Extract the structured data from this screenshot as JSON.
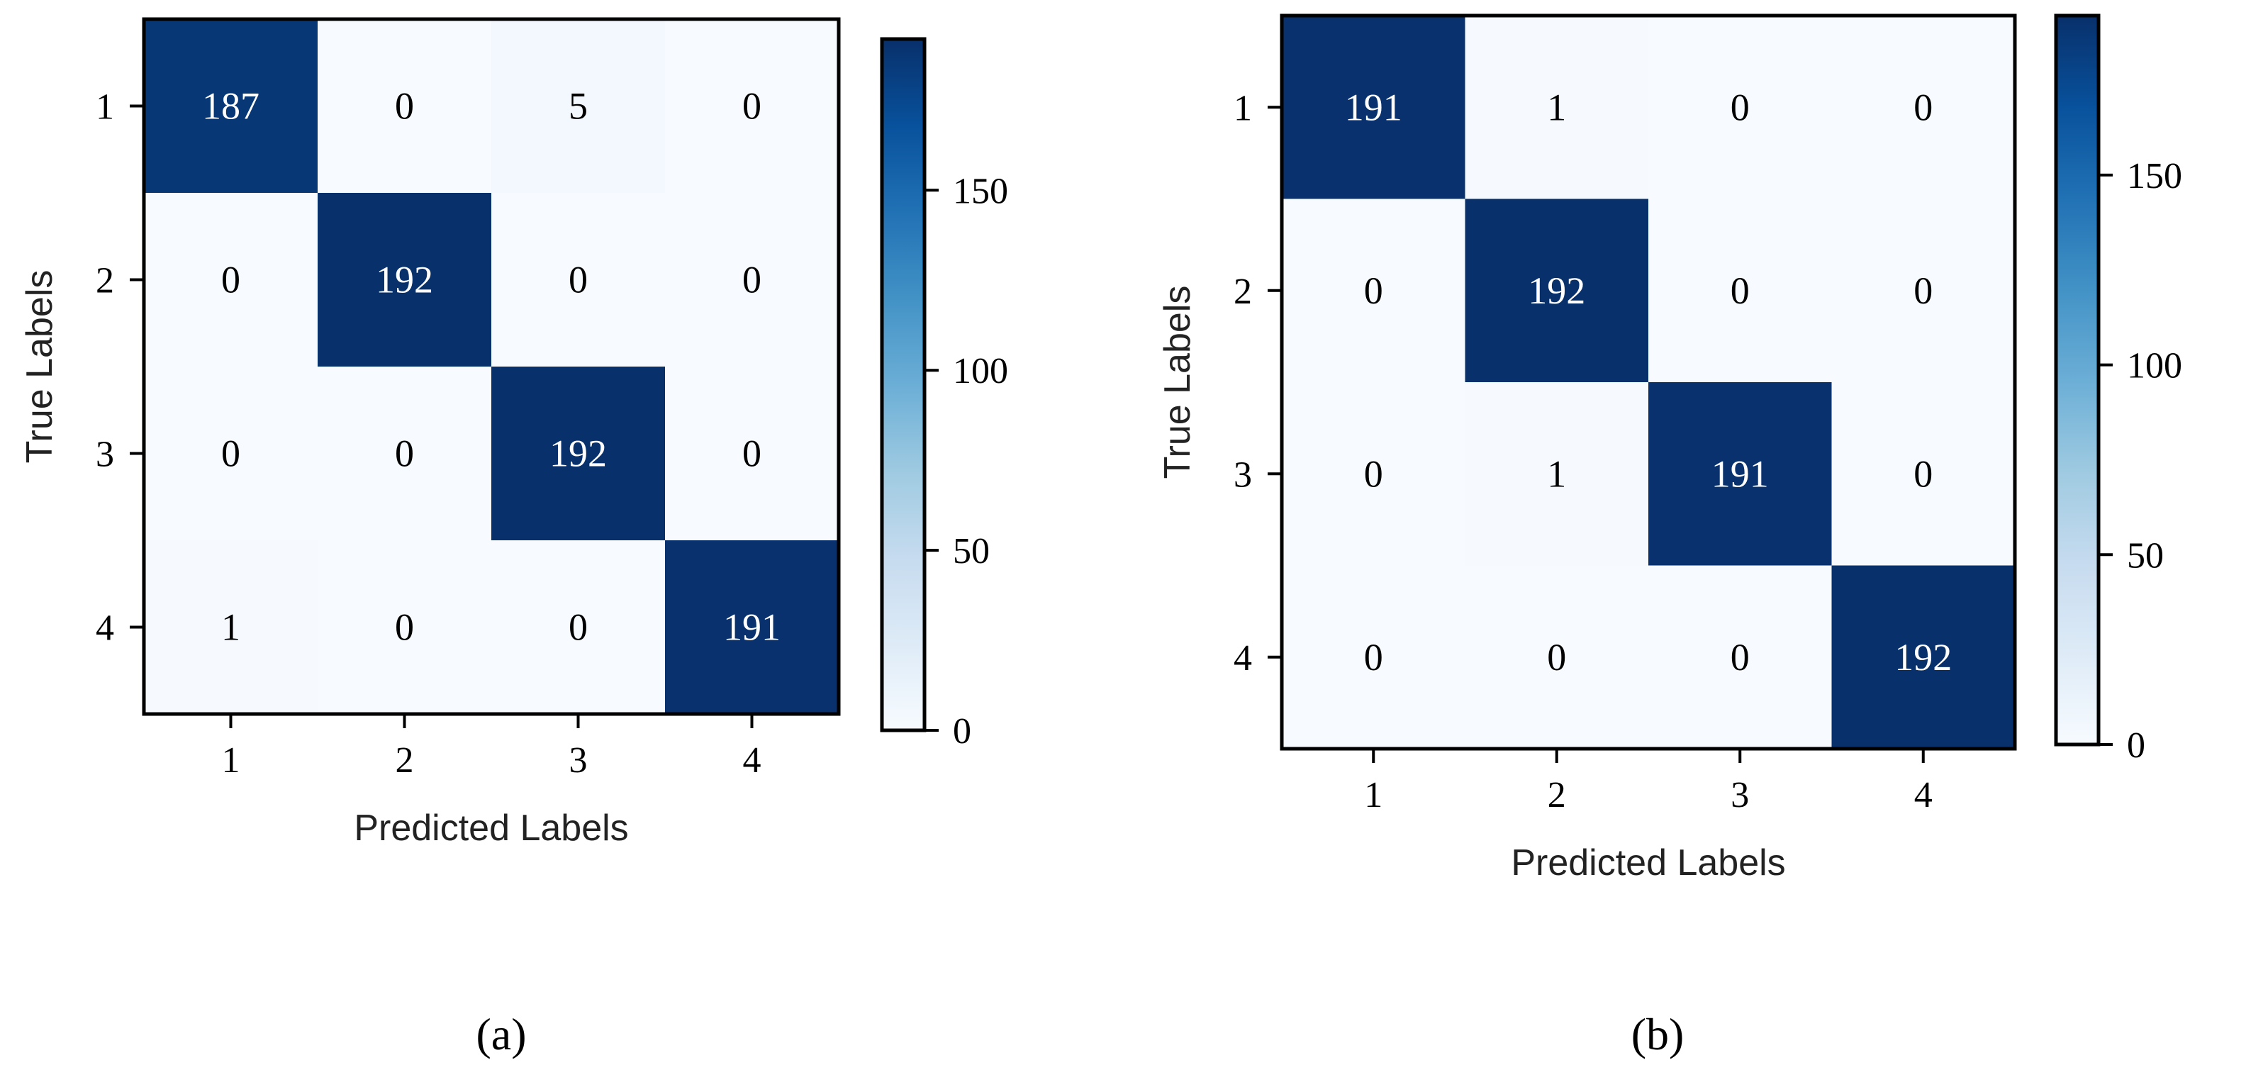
{
  "chart_data": [
    {
      "type": "heatmap",
      "panel_label": "(a)",
      "xlabel": "Predicted Labels",
      "ylabel": "True Labels",
      "x_categories": [
        "1",
        "2",
        "3",
        "4"
      ],
      "y_categories": [
        "1",
        "2",
        "3",
        "4"
      ],
      "values": [
        [
          187,
          0,
          5,
          0
        ],
        [
          0,
          192,
          0,
          0
        ],
        [
          0,
          0,
          192,
          0
        ],
        [
          1,
          0,
          0,
          191
        ]
      ],
      "colorbar": {
        "min": 0,
        "max": 192,
        "ticks": [
          0,
          50,
          100,
          150
        ]
      },
      "colormap": "Blues"
    },
    {
      "type": "heatmap",
      "panel_label": "(b)",
      "xlabel": "Predicted Labels",
      "ylabel": "True Labels",
      "x_categories": [
        "1",
        "2",
        "3",
        "4"
      ],
      "y_categories": [
        "1",
        "2",
        "3",
        "4"
      ],
      "values": [
        [
          191,
          1,
          0,
          0
        ],
        [
          0,
          192,
          0,
          0
        ],
        [
          0,
          1,
          191,
          0
        ],
        [
          0,
          0,
          0,
          192
        ]
      ],
      "colorbar": {
        "min": 0,
        "max": 192,
        "ticks": [
          0,
          50,
          100,
          150
        ]
      },
      "colormap": "Blues"
    }
  ]
}
